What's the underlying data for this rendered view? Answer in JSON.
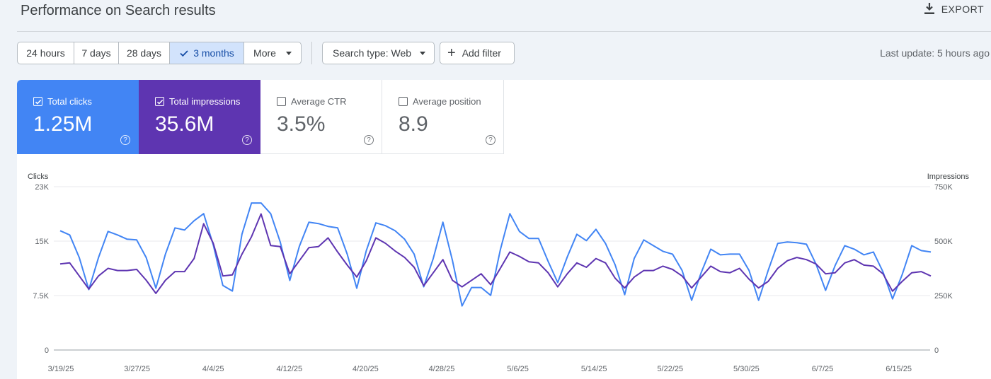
{
  "header": {
    "title": "Performance on Search results",
    "export_label": "EXPORT"
  },
  "filters": {
    "ranges": [
      {
        "label": "24 hours",
        "active": false
      },
      {
        "label": "7 days",
        "active": false
      },
      {
        "label": "28 days",
        "active": false
      },
      {
        "label": "3 months",
        "active": true
      },
      {
        "label": "More",
        "active": false
      }
    ],
    "search_type_label": "Search type: Web",
    "add_filter_label": "Add filter",
    "last_update": "Last update: 5 hours ago"
  },
  "metrics": {
    "clicks": {
      "label": "Total clicks",
      "value": "1.25M",
      "checked": true,
      "color": "#4285f4"
    },
    "impressions": {
      "label": "Total impressions",
      "value": "35.6M",
      "checked": true,
      "color": "#5e35b1"
    },
    "ctr": {
      "label": "Average CTR",
      "value": "3.5%",
      "checked": false
    },
    "position": {
      "label": "Average position",
      "value": "8.9",
      "checked": false
    }
  },
  "chart_data": {
    "type": "line",
    "ylabel": "Clicks",
    "y2label": "Impressions",
    "ylim": [
      0,
      23000
    ],
    "y2lim": [
      0,
      750000
    ],
    "yticks": [
      "0",
      "7.5K",
      "15K",
      "23K"
    ],
    "y2ticks": [
      "0",
      "250K",
      "500K",
      "750K"
    ],
    "xticklabels": [
      "3/19/25",
      "3/27/25",
      "4/4/25",
      "4/12/25",
      "4/20/25",
      "4/28/25",
      "5/6/25",
      "5/14/25",
      "5/22/25",
      "5/30/25",
      "6/7/25",
      "6/15/25"
    ],
    "grid": true,
    "series": [
      {
        "name": "Clicks",
        "axis": "left",
        "color": "#4285f4",
        "values": [
          16800,
          16200,
          13000,
          8500,
          13000,
          16700,
          16200,
          15600,
          15500,
          13000,
          8700,
          13500,
          17200,
          16900,
          18200,
          19200,
          14800,
          9100,
          8300,
          16300,
          20700,
          20700,
          19200,
          15200,
          9800,
          14600,
          18000,
          17800,
          17400,
          17200,
          13500,
          8700,
          14000,
          17900,
          17500,
          16800,
          15600,
          13500,
          8900,
          12900,
          18000,
          12600,
          6200,
          8800,
          8800,
          7700,
          14100,
          19200,
          16700,
          15700,
          15700,
          12500,
          9500,
          13100,
          16300,
          15400,
          17000,
          15000,
          12000,
          7800,
          12900,
          15500,
          14700,
          13900,
          13500,
          11200,
          7000,
          10900,
          14200,
          13400,
          13500,
          13500,
          11200,
          7000,
          11200,
          15000,
          15200,
          15100,
          14900,
          12100,
          8400,
          11900,
          14700,
          14200,
          13400,
          13800,
          11000,
          7200,
          10600,
          14700,
          14000,
          13800
        ]
      },
      {
        "name": "Impressions",
        "axis": "right",
        "color": "#5e35b1",
        "values": [
          395000,
          400000,
          340000,
          280000,
          340000,
          375000,
          365000,
          365000,
          370000,
          320000,
          260000,
          320000,
          360000,
          360000,
          420000,
          580000,
          490000,
          340000,
          345000,
          440000,
          520000,
          625000,
          480000,
          475000,
          350000,
          410000,
          470000,
          475000,
          515000,
          450000,
          390000,
          335000,
          410000,
          515000,
          490000,
          455000,
          425000,
          380000,
          295000,
          355000,
          415000,
          320000,
          290000,
          320000,
          350000,
          300000,
          375000,
          450000,
          430000,
          405000,
          400000,
          355000,
          290000,
          350000,
          400000,
          380000,
          420000,
          400000,
          330000,
          285000,
          335000,
          365000,
          365000,
          385000,
          370000,
          340000,
          285000,
          335000,
          385000,
          360000,
          355000,
          375000,
          325000,
          285000,
          315000,
          375000,
          410000,
          425000,
          415000,
          395000,
          350000,
          355000,
          400000,
          415000,
          390000,
          385000,
          350000,
          270000,
          315000,
          355000,
          360000,
          340000
        ]
      }
    ]
  }
}
